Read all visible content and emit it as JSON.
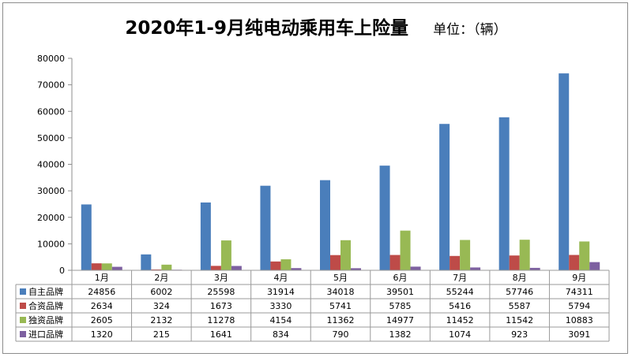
{
  "chart_data": {
    "type": "bar",
    "title": "2020年1-9月纯电动乘用车上险量",
    "unit_label": "单位：（辆）",
    "categories": [
      "1月",
      "2月",
      "3月",
      "4月",
      "5月",
      "6月",
      "7月",
      "8月",
      "9月"
    ],
    "series": [
      {
        "name": "自主品牌",
        "color": "#4a7ebb",
        "values": [
          24856,
          6002,
          25598,
          31914,
          34018,
          39501,
          55244,
          57746,
          74311
        ]
      },
      {
        "name": "合资品牌",
        "color": "#be4b48",
        "values": [
          2634,
          324,
          1673,
          3330,
          5741,
          5785,
          5416,
          5587,
          5794
        ]
      },
      {
        "name": "独资品牌",
        "color": "#98b954",
        "values": [
          2605,
          2132,
          11278,
          4154,
          11362,
          14977,
          11452,
          11542,
          10883
        ]
      },
      {
        "name": "进口品牌",
        "color": "#7d60a0",
        "values": [
          1320,
          215,
          1641,
          834,
          790,
          1382,
          1074,
          923,
          3091
        ]
      }
    ],
    "ylim": [
      0,
      80000
    ],
    "yticks": [
      0,
      10000,
      20000,
      30000,
      40000,
      50000,
      60000,
      70000,
      80000
    ],
    "grid": false,
    "legend": "data-table-below"
  }
}
